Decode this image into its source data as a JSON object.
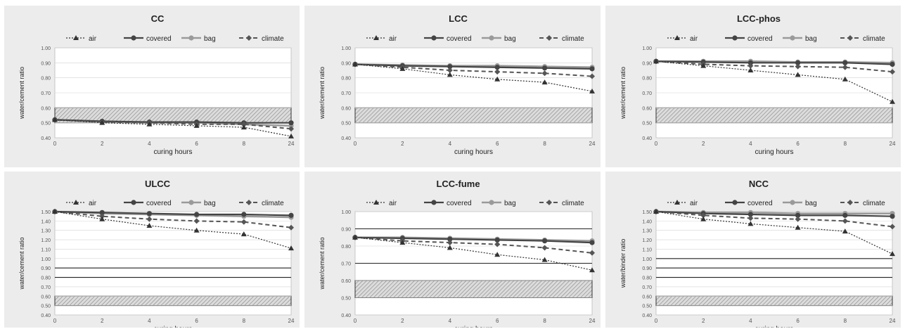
{
  "legend_labels": [
    "air",
    "covered",
    "bag",
    "climate"
  ],
  "series_styles": [
    {
      "name": "air",
      "color": "#333333",
      "dash": "2 2",
      "marker": "triangle",
      "width": 1.2
    },
    {
      "name": "covered",
      "color": "#444444",
      "dash": "",
      "marker": "circle",
      "width": 2.2
    },
    {
      "name": "bag",
      "color": "#9a9a9a",
      "dash": "",
      "marker": "circle",
      "width": 2.6
    },
    {
      "name": "climate",
      "color": "#555555",
      "dash": "6 4",
      "marker": "diamond",
      "width": 2.0
    }
  ],
  "chart_data": [
    {
      "type": "line",
      "title": "CC",
      "xlabel": "curing hours",
      "ylabel": "water/cement ratio",
      "categories": [
        "0",
        "2",
        "4",
        "6",
        "8",
        "24"
      ],
      "ylim": [
        0.4,
        1.0
      ],
      "yticks": [
        "0.40",
        "0.50",
        "0.60",
        "0.70",
        "0.80",
        "0.90",
        "1.00"
      ],
      "hatched_band": [
        0.5,
        0.6
      ],
      "series": [
        {
          "name": "air",
          "values": [
            0.52,
            0.5,
            0.49,
            0.48,
            0.47,
            0.41
          ]
        },
        {
          "name": "covered",
          "values": [
            0.52,
            0.51,
            0.505,
            0.505,
            0.5,
            0.5
          ]
        },
        {
          "name": "bag",
          "values": [
            0.52,
            0.51,
            0.5,
            0.5,
            0.49,
            0.48
          ]
        },
        {
          "name": "climate",
          "values": [
            0.52,
            0.505,
            0.5,
            0.49,
            0.49,
            0.46
          ]
        }
      ]
    },
    {
      "type": "line",
      "title": "LCC",
      "xlabel": "curing hours",
      "ylabel": "water/cement ratio",
      "categories": [
        "0",
        "2",
        "4",
        "6",
        "8",
        "24"
      ],
      "ylim": [
        0.4,
        1.0
      ],
      "yticks": [
        "0.40",
        "0.50",
        "0.60",
        "0.70",
        "0.80",
        "0.90",
        "1.00"
      ],
      "hatched_band": [
        0.5,
        0.6
      ],
      "series": [
        {
          "name": "air",
          "values": [
            0.89,
            0.86,
            0.82,
            0.79,
            0.77,
            0.71
          ]
        },
        {
          "name": "covered",
          "values": [
            0.89,
            0.88,
            0.875,
            0.87,
            0.865,
            0.86
          ]
        },
        {
          "name": "bag",
          "values": [
            0.89,
            0.885,
            0.88,
            0.88,
            0.875,
            0.87
          ]
        },
        {
          "name": "climate",
          "values": [
            0.89,
            0.87,
            0.85,
            0.84,
            0.83,
            0.81
          ]
        }
      ]
    },
    {
      "type": "line",
      "title": "LCC-phos",
      "xlabel": "curing hours",
      "ylabel": "water/cement ratio",
      "categories": [
        "0",
        "2",
        "4",
        "6",
        "8",
        "24"
      ],
      "ylim": [
        0.4,
        1.0
      ],
      "yticks": [
        "0.40",
        "0.50",
        "0.60",
        "0.70",
        "0.80",
        "0.90",
        "1.00"
      ],
      "hatched_band": [
        0.5,
        0.6
      ],
      "series": [
        {
          "name": "air",
          "values": [
            0.91,
            0.88,
            0.85,
            0.82,
            0.79,
            0.64
          ]
        },
        {
          "name": "covered",
          "values": [
            0.91,
            0.905,
            0.9,
            0.9,
            0.9,
            0.89
          ]
        },
        {
          "name": "bag",
          "values": [
            0.91,
            0.91,
            0.91,
            0.905,
            0.905,
            0.9
          ]
        },
        {
          "name": "climate",
          "values": [
            0.91,
            0.89,
            0.88,
            0.875,
            0.87,
            0.84
          ]
        }
      ]
    },
    {
      "type": "line",
      "title": "ULCC",
      "xlabel": "curing hours",
      "ylabel": "water/cement ratio",
      "categories": [
        "0",
        "2",
        "4",
        "6",
        "8",
        "24"
      ],
      "ylim": [
        0.4,
        1.5
      ],
      "yticks": [
        "0.40",
        "0.50",
        "0.60",
        "0.70",
        "0.80",
        "0.90",
        "1.00",
        "1.10",
        "1.20",
        "1.30",
        "1.40",
        "1.50"
      ],
      "hatched_band": [
        0.5,
        0.6
      ],
      "extra_hlines": [
        0.8,
        0.9
      ],
      "series": [
        {
          "name": "air",
          "values": [
            1.5,
            1.42,
            1.35,
            1.3,
            1.26,
            1.11
          ]
        },
        {
          "name": "covered",
          "values": [
            1.5,
            1.49,
            1.48,
            1.47,
            1.47,
            1.46
          ]
        },
        {
          "name": "bag",
          "values": [
            1.5,
            1.48,
            1.47,
            1.46,
            1.45,
            1.44
          ]
        },
        {
          "name": "climate",
          "values": [
            1.5,
            1.45,
            1.42,
            1.4,
            1.39,
            1.33
          ]
        }
      ]
    },
    {
      "type": "line",
      "title": "LCC-fume",
      "xlabel": "curing hours",
      "ylabel": "water/cement ratio",
      "categories": [
        "0",
        "2",
        "4",
        "6",
        "8",
        "24"
      ],
      "ylim": [
        0.4,
        1.0
      ],
      "yticks": [
        "0.40",
        "0.50",
        "0.60",
        "0.70",
        "0.80",
        "0.90",
        "1.00"
      ],
      "hatched_band": [
        0.5,
        0.6
      ],
      "extra_hlines": [
        0.7,
        0.9
      ],
      "series": [
        {
          "name": "air",
          "values": [
            0.85,
            0.82,
            0.79,
            0.75,
            0.72,
            0.66
          ]
        },
        {
          "name": "covered",
          "values": [
            0.85,
            0.845,
            0.84,
            0.835,
            0.83,
            0.82
          ]
        },
        {
          "name": "bag",
          "values": [
            0.85,
            0.85,
            0.845,
            0.84,
            0.835,
            0.83
          ]
        },
        {
          "name": "climate",
          "values": [
            0.85,
            0.83,
            0.82,
            0.81,
            0.79,
            0.76
          ]
        }
      ]
    },
    {
      "type": "line",
      "title": "NCC",
      "xlabel": "curing hours",
      "ylabel": "water/binder ratio",
      "categories": [
        "0",
        "2",
        "4",
        "6",
        "8",
        "24"
      ],
      "ylim": [
        0.4,
        1.5
      ],
      "yticks": [
        "0.40",
        "0.50",
        "0.60",
        "0.70",
        "0.80",
        "0.90",
        "1.00",
        "1.10",
        "1.20",
        "1.30",
        "1.40",
        "1.50"
      ],
      "hatched_band": [
        0.5,
        0.6
      ],
      "extra_hlines": [
        0.8,
        0.9,
        1.0
      ],
      "series": [
        {
          "name": "air",
          "values": [
            1.5,
            1.42,
            1.37,
            1.33,
            1.29,
            1.05
          ]
        },
        {
          "name": "covered",
          "values": [
            1.5,
            1.48,
            1.47,
            1.46,
            1.46,
            1.45
          ]
        },
        {
          "name": "bag",
          "values": [
            1.5,
            1.49,
            1.49,
            1.48,
            1.48,
            1.48
          ]
        },
        {
          "name": "climate",
          "values": [
            1.5,
            1.46,
            1.43,
            1.42,
            1.4,
            1.34
          ]
        }
      ]
    }
  ]
}
